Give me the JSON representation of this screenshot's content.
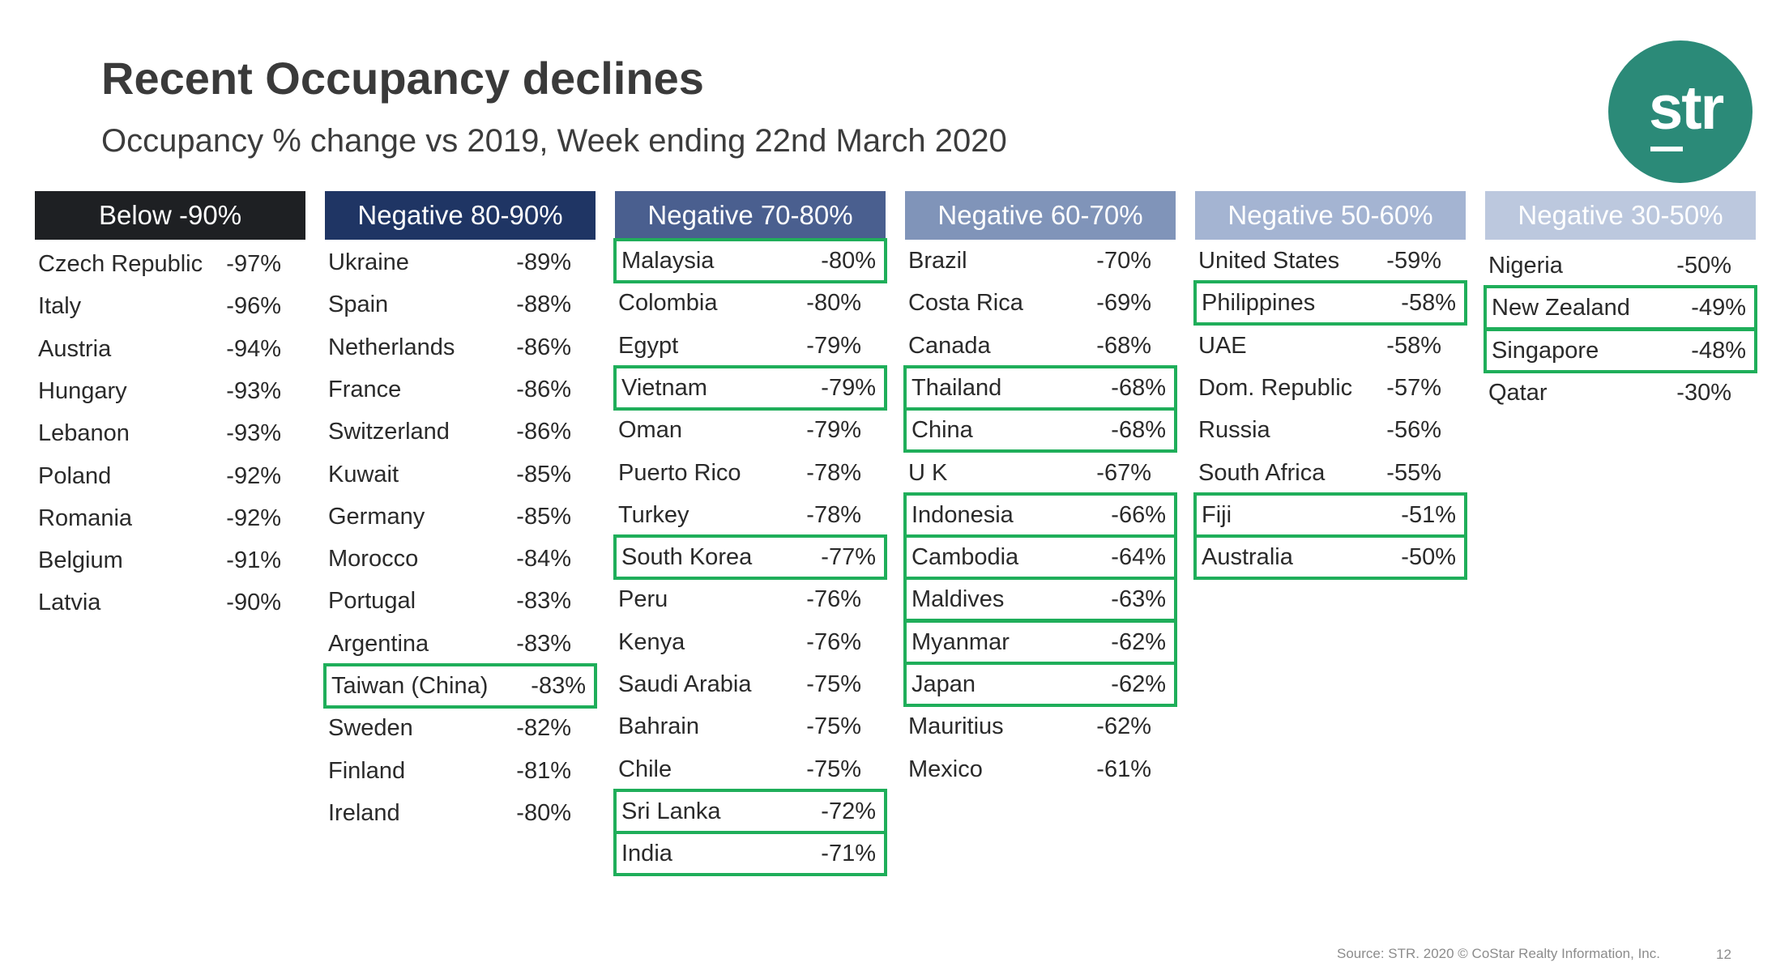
{
  "slide": {
    "title": "Recent Occupancy declines",
    "subtitle": "Occupancy % change vs 2019, Week ending 22nd March 2020",
    "logo_text": "str",
    "footer": "Source: STR. 2020 © CoStar Realty Information, Inc.",
    "page_number": "12"
  },
  "colors": {
    "highlight": "#1fae5a",
    "logo": "#2b8a78",
    "header_backgrounds": [
      "#1e2023",
      "#1f3564",
      "#4a5f8f",
      "#8094b9",
      "#a4b4d2",
      "#bcc8de"
    ]
  },
  "columns": [
    {
      "header": "Below -90%",
      "rows": [
        {
          "country": "Czech Republic",
          "value": "-97%",
          "highlighted": false
        },
        {
          "country": "Italy",
          "value": "-96%",
          "highlighted": false
        },
        {
          "country": "Austria",
          "value": "-94%",
          "highlighted": false
        },
        {
          "country": "Hungary",
          "value": "-93%",
          "highlighted": false
        },
        {
          "country": "Lebanon",
          "value": "-93%",
          "highlighted": false
        },
        {
          "country": "Poland",
          "value": "-92%",
          "highlighted": false
        },
        {
          "country": "Romania",
          "value": "-92%",
          "highlighted": false
        },
        {
          "country": "Belgium",
          "value": "-91%",
          "highlighted": false
        },
        {
          "country": "Latvia",
          "value": "-90%",
          "highlighted": false
        }
      ]
    },
    {
      "header": "Negative 80-90%",
      "rows": [
        {
          "country": "Ukraine",
          "value": "-89%",
          "highlighted": false
        },
        {
          "country": "Spain",
          "value": "-88%",
          "highlighted": false
        },
        {
          "country": "Netherlands",
          "value": "-86%",
          "highlighted": false
        },
        {
          "country": "France",
          "value": "-86%",
          "highlighted": false
        },
        {
          "country": "Switzerland",
          "value": "-86%",
          "highlighted": false
        },
        {
          "country": "Kuwait",
          "value": "-85%",
          "highlighted": false
        },
        {
          "country": "Germany",
          "value": "-85%",
          "highlighted": false
        },
        {
          "country": "Morocco",
          "value": "-84%",
          "highlighted": false
        },
        {
          "country": "Portugal",
          "value": "-83%",
          "highlighted": false
        },
        {
          "country": "Argentina",
          "value": "-83%",
          "highlighted": false
        },
        {
          "country": "Taiwan (China)",
          "value": "-83%",
          "highlighted": true
        },
        {
          "country": "Sweden",
          "value": "-82%",
          "highlighted": false
        },
        {
          "country": "Finland",
          "value": "-81%",
          "highlighted": false
        },
        {
          "country": "Ireland",
          "value": "-80%",
          "highlighted": false
        }
      ]
    },
    {
      "header": "Negative 70-80%",
      "rows": [
        {
          "country": "Malaysia",
          "value": "-80%",
          "highlighted": true
        },
        {
          "country": "Colombia",
          "value": "-80%",
          "highlighted": false
        },
        {
          "country": "Egypt",
          "value": "-79%",
          "highlighted": false
        },
        {
          "country": "Vietnam",
          "value": "-79%",
          "highlighted": true
        },
        {
          "country": "Oman",
          "value": "-79%",
          "highlighted": false
        },
        {
          "country": "Puerto Rico",
          "value": "-78%",
          "highlighted": false
        },
        {
          "country": "Turkey",
          "value": "-78%",
          "highlighted": false
        },
        {
          "country": "South Korea",
          "value": "-77%",
          "highlighted": true
        },
        {
          "country": "Peru",
          "value": "-76%",
          "highlighted": false
        },
        {
          "country": "Kenya",
          "value": "-76%",
          "highlighted": false
        },
        {
          "country": "Saudi Arabia",
          "value": "-75%",
          "highlighted": false
        },
        {
          "country": "Bahrain",
          "value": "-75%",
          "highlighted": false
        },
        {
          "country": "Chile",
          "value": "-75%",
          "highlighted": false
        },
        {
          "country": "Sri Lanka",
          "value": "-72%",
          "highlighted": true
        },
        {
          "country": "India",
          "value": "-71%",
          "highlighted": true
        }
      ]
    },
    {
      "header": "Negative 60-70%",
      "rows": [
        {
          "country": "Brazil",
          "value": "-70%",
          "highlighted": false
        },
        {
          "country": "Costa Rica",
          "value": "-69%",
          "highlighted": false
        },
        {
          "country": "Canada",
          "value": "-68%",
          "highlighted": false
        },
        {
          "country": "Thailand",
          "value": "-68%",
          "highlighted": true
        },
        {
          "country": "China",
          "value": "-68%",
          "highlighted": true
        },
        {
          "country": "U K",
          "value": "-67%",
          "highlighted": false
        },
        {
          "country": "Indonesia",
          "value": "-66%",
          "highlighted": true
        },
        {
          "country": "Cambodia",
          "value": "-64%",
          "highlighted": true
        },
        {
          "country": "Maldives",
          "value": "-63%",
          "highlighted": true
        },
        {
          "country": "Myanmar",
          "value": "-62%",
          "highlighted": true
        },
        {
          "country": "Japan",
          "value": "-62%",
          "highlighted": true
        },
        {
          "country": "Mauritius",
          "value": "-62%",
          "highlighted": false
        },
        {
          "country": "Mexico",
          "value": "-61%",
          "highlighted": false
        }
      ]
    },
    {
      "header": "Negative 50-60%",
      "rows": [
        {
          "country": "United States",
          "value": "-59%",
          "highlighted": false
        },
        {
          "country": "Philippines",
          "value": "-58%",
          "highlighted": true
        },
        {
          "country": "UAE",
          "value": "-58%",
          "highlighted": false
        },
        {
          "country": "Dom. Republic",
          "value": "-57%",
          "highlighted": false
        },
        {
          "country": "Russia",
          "value": "-56%",
          "highlighted": false
        },
        {
          "country": "South Africa",
          "value": "-55%",
          "highlighted": false
        },
        {
          "country": "Fiji",
          "value": "-51%",
          "highlighted": true
        },
        {
          "country": "Australia",
          "value": "-50%",
          "highlighted": true
        }
      ]
    },
    {
      "header": "Negative 30-50%",
      "rows": [
        {
          "country": "Nigeria",
          "value": "-50%",
          "highlighted": false
        },
        {
          "country": "New Zealand",
          "value": "-49%",
          "highlighted": true
        },
        {
          "country": "Singapore",
          "value": "-48%",
          "highlighted": true
        },
        {
          "country": "Qatar",
          "value": "-30%",
          "highlighted": false
        }
      ]
    }
  ]
}
